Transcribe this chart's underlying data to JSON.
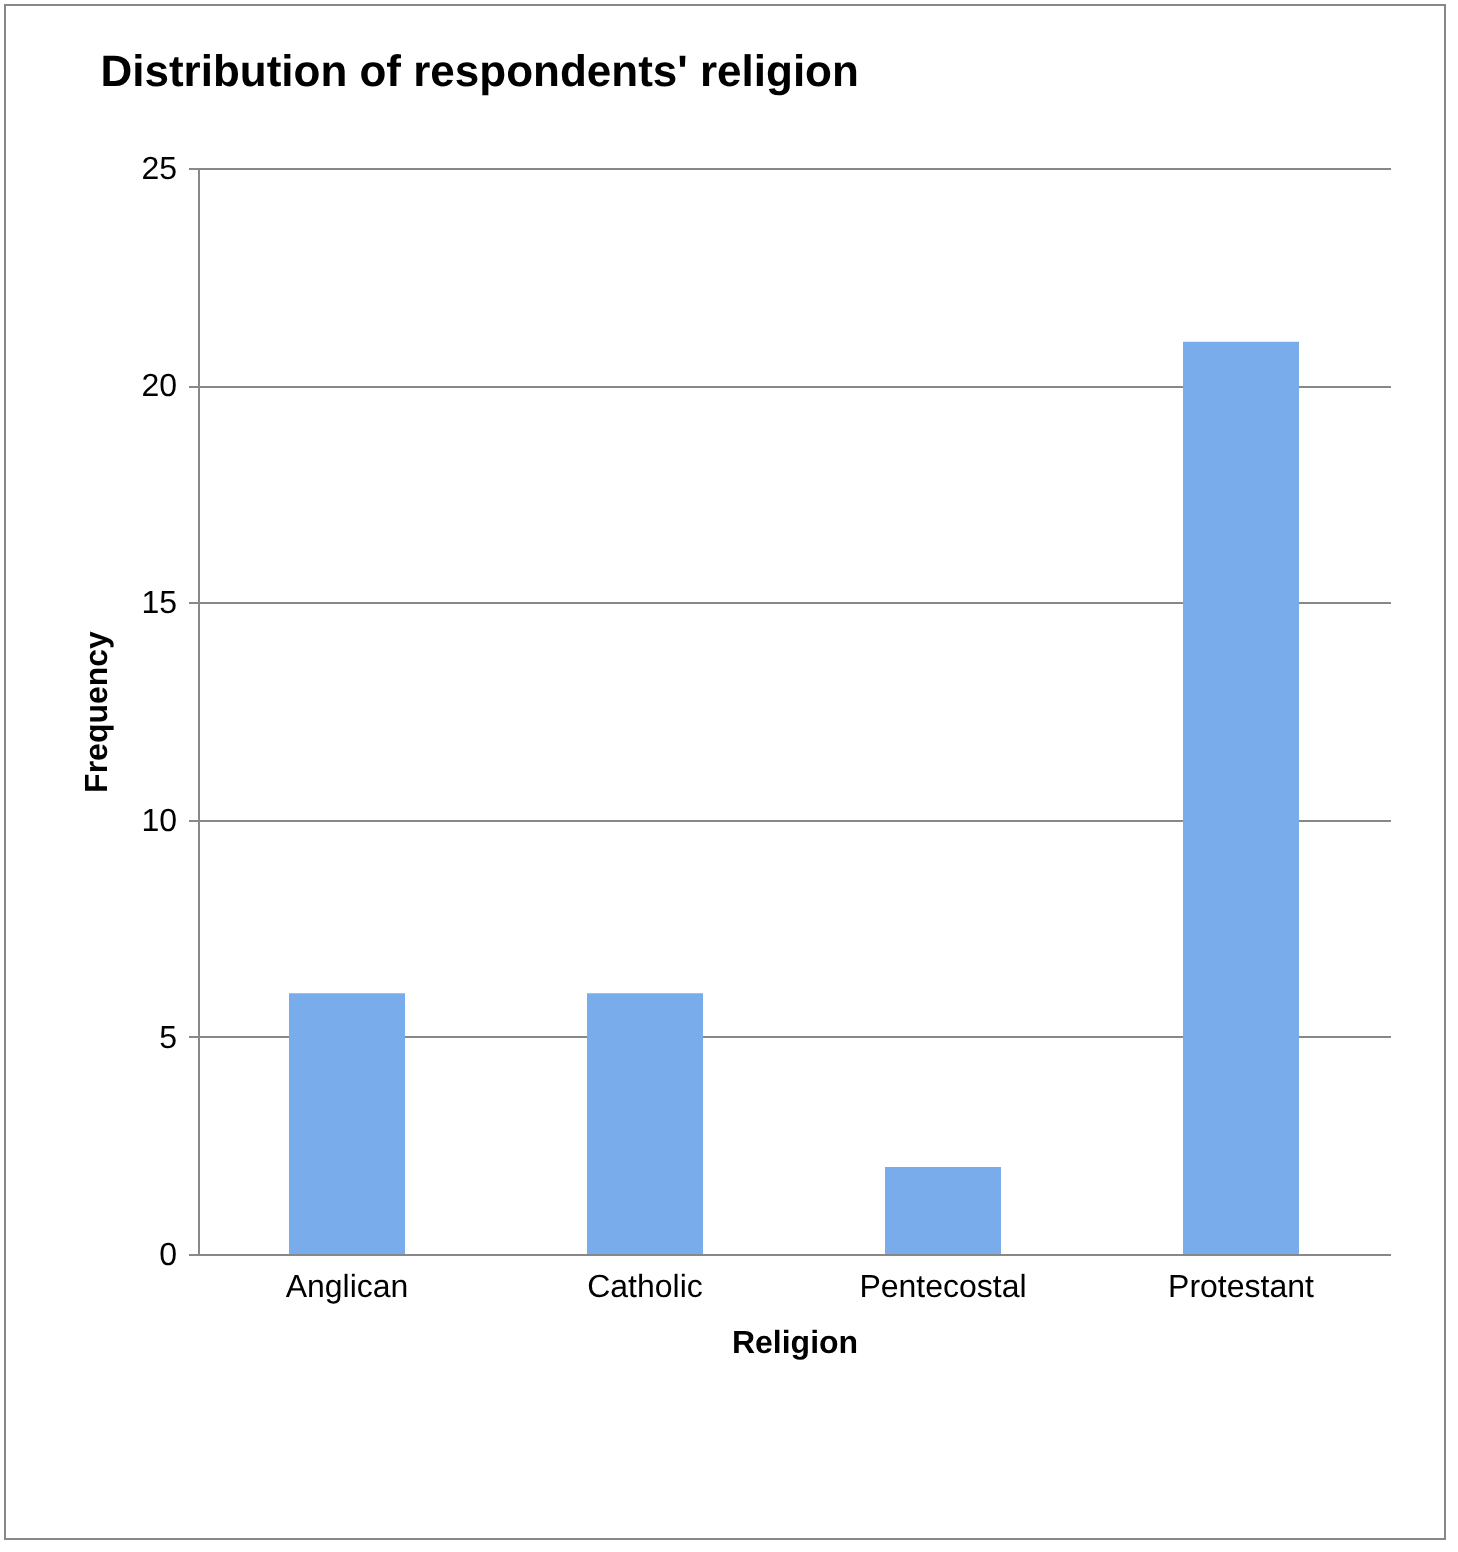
{
  "chart_data": {
    "type": "bar",
    "title": "Distribution of respondents' religion",
    "xlabel": "Religion",
    "ylabel": "Frequency",
    "categories": [
      "Anglican",
      "Catholic",
      "Pentecostal",
      "Protestant"
    ],
    "values": [
      6,
      6,
      2,
      21
    ],
    "color": "#78acea",
    "ylim": [
      0,
      25
    ],
    "yticks": [
      0,
      5,
      10,
      15,
      20,
      25
    ],
    "grid": "y"
  }
}
